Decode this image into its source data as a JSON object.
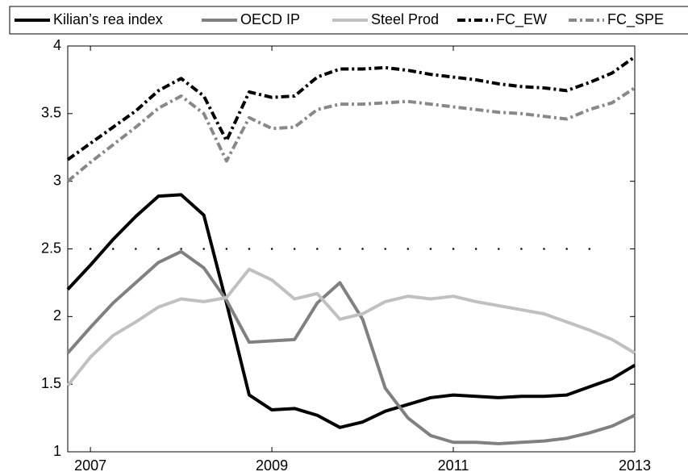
{
  "chart_data": {
    "type": "line",
    "x": [
      2006.75,
      2007,
      2007.25,
      2007.5,
      2007.75,
      2008,
      2008.25,
      2008.5,
      2008.75,
      2009,
      2009.25,
      2009.5,
      2009.75,
      2010,
      2010.25,
      2010.5,
      2010.75,
      2011,
      2011.25,
      2011.5,
      2011.75,
      2012,
      2012.25,
      2012.5,
      2012.75,
      2013
    ],
    "series": [
      {
        "name": "Kilian’s rea index",
        "color": "#000000",
        "dash": "solid",
        "values": [
          2.2,
          2.38,
          2.57,
          2.74,
          2.89,
          2.9,
          2.75,
          2.1,
          1.42,
          1.31,
          1.32,
          1.27,
          1.18,
          1.22,
          1.3,
          1.35,
          1.4,
          1.42,
          1.41,
          1.4,
          1.41,
          1.41,
          1.42,
          1.48,
          1.54,
          1.64
        ]
      },
      {
        "name": "OECD IP",
        "color": "#808080",
        "dash": "solid",
        "values": [
          1.73,
          1.92,
          2.1,
          2.25,
          2.4,
          2.48,
          2.36,
          2.12,
          1.81,
          1.82,
          1.83,
          2.1,
          2.25,
          1.98,
          1.47,
          1.25,
          1.12,
          1.07,
          1.07,
          1.06,
          1.07,
          1.08,
          1.1,
          1.14,
          1.19,
          1.27
        ]
      },
      {
        "name": "Steel Prod",
        "color": "#c0c0c0",
        "dash": "solid",
        "values": [
          1.49,
          1.7,
          1.86,
          1.96,
          2.07,
          2.13,
          2.11,
          2.14,
          2.35,
          2.27,
          2.13,
          2.17,
          1.98,
          2.02,
          2.11,
          2.15,
          2.13,
          2.15,
          2.11,
          2.08,
          2.05,
          2.02,
          1.96,
          1.9,
          1.83,
          1.73
        ]
      },
      {
        "name": "FC_EW",
        "color": "#000000",
        "dash": "dashdot",
        "values": [
          3.16,
          3.28,
          3.4,
          3.52,
          3.67,
          3.76,
          3.63,
          3.3,
          3.66,
          3.62,
          3.63,
          3.77,
          3.83,
          3.83,
          3.84,
          3.82,
          3.79,
          3.77,
          3.75,
          3.72,
          3.7,
          3.69,
          3.67,
          3.73,
          3.8,
          3.92
        ]
      },
      {
        "name": "FC_SPE",
        "color": "#888888",
        "dash": "dashdot",
        "values": [
          3.0,
          3.14,
          3.27,
          3.4,
          3.54,
          3.63,
          3.5,
          3.15,
          3.47,
          3.39,
          3.4,
          3.53,
          3.57,
          3.57,
          3.58,
          3.59,
          3.57,
          3.55,
          3.53,
          3.51,
          3.5,
          3.48,
          3.46,
          3.53,
          3.58,
          3.69
        ]
      }
    ],
    "hline": {
      "y": 2.5,
      "x": [
        2007,
        2012.75
      ]
    },
    "xlim": [
      2006.75,
      2013
    ],
    "xticks": [
      2007,
      2009,
      2011,
      2013
    ],
    "ylim": [
      1,
      4
    ],
    "yticks": [
      1,
      1.5,
      2,
      2.5,
      3,
      3.5,
      4
    ],
    "grid": false,
    "legend": "top"
  }
}
